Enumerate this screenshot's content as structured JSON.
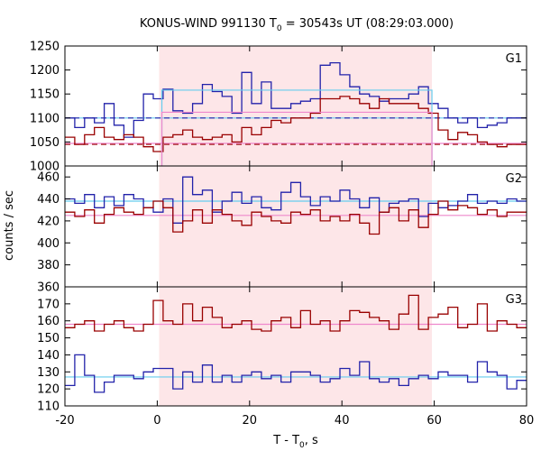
{
  "chart_data": {
    "type": "line",
    "title": "KONUS-WIND 991130 T",
    "title_sub": "0",
    "title_rest": " = 30543s UT (08:29:03.000)",
    "xlabel": "T - T",
    "xlabel_sub": "0",
    "xlabel_rest": ", s",
    "ylabel": "counts / sec",
    "xlim": [
      -20,
      80
    ],
    "xticks": [
      -20,
      0,
      20,
      40,
      60,
      80
    ],
    "shaded_interval": [
      0.4,
      59.5
    ],
    "grid": false,
    "colors": {
      "blue": "#2222aa",
      "red": "#990000",
      "cyan": "#66ccee",
      "pink": "#ee88cc",
      "shade": "#fde6e8"
    },
    "panels": [
      {
        "label": "G1",
        "ylim": [
          1000,
          1250
        ],
        "yticks": [
          1000,
          1050,
          1100,
          1150,
          1200,
          1250
        ],
        "step_series": [
          {
            "color": "blue",
            "x0": -20,
            "values": [
              1100,
              1080,
              1100,
              1090,
              1130,
              1085,
              1060,
              1095,
              1150,
              1140,
              1160,
              1115,
              1110,
              1130,
              1170,
              1155,
              1145,
              1110,
              1195,
              1130,
              1175,
              1120,
              1120,
              1130,
              1135,
              1140,
              1210,
              1215,
              1190,
              1165,
              1150,
              1145,
              1135,
              1140,
              1140,
              1150,
              1165,
              1130,
              1120,
              1100,
              1090,
              1100,
              1080,
              1085,
              1090,
              1100,
              1100
            ]
          },
          {
            "color": "red",
            "x0": -20,
            "values": [
              1060,
              1045,
              1065,
              1080,
              1060,
              1055,
              1065,
              1060,
              1040,
              1030,
              1060,
              1065,
              1075,
              1060,
              1055,
              1060,
              1065,
              1050,
              1080,
              1065,
              1080,
              1095,
              1090,
              1100,
              1100,
              1110,
              1140,
              1140,
              1145,
              1140,
              1130,
              1120,
              1140,
              1130,
              1130,
              1130,
              1120,
              1110,
              1075,
              1055,
              1070,
              1065,
              1050,
              1045,
              1040,
              1045,
              1045
            ]
          }
        ],
        "bg_lines": [
          {
            "color": "cyan",
            "style": "solid",
            "x": [
              -20,
              80
            ],
            "y": 1100
          },
          {
            "color": "blue",
            "style": "dashed",
            "x": [
              -20,
              80
            ],
            "y": 1100
          },
          {
            "color": "pink",
            "style": "solid",
            "x": [
              -20,
              80
            ],
            "y": 1047
          },
          {
            "color": "red",
            "style": "dashed",
            "x": [
              -20,
              80
            ],
            "y": 1045
          }
        ],
        "interval_levels": [
          {
            "color": "cyan",
            "x": [
              1,
              59.5
            ],
            "y": 1158
          },
          {
            "color": "pink",
            "x": [
              1,
              59.5
            ],
            "y": 1112
          }
        ]
      },
      {
        "label": "G2",
        "ylim": [
          360,
          470
        ],
        "yticks": [
          360,
          380,
          400,
          420,
          440,
          460
        ],
        "step_series": [
          {
            "color": "blue",
            "x0": -20,
            "values": [
              440,
              436,
              444,
              432,
              442,
              434,
              444,
              440,
              432,
              428,
              440,
              418,
              460,
              444,
              448,
              428,
              438,
              446,
              436,
              442,
              432,
              430,
              446,
              455,
              442,
              434,
              442,
              438,
              448,
              440,
              432,
              441,
              428,
              436,
              438,
              440,
              424,
              436,
              432,
              434,
              438,
              444,
              436,
              438,
              436,
              440,
              438
            ]
          },
          {
            "color": "red",
            "x0": -20,
            "values": [
              428,
              424,
              430,
              418,
              426,
              432,
              428,
              426,
              432,
              438,
              432,
              410,
              420,
              430,
              418,
              430,
              426,
              420,
              416,
              428,
              424,
              420,
              418,
              428,
              426,
              430,
              420,
              424,
              420,
              426,
              418,
              408,
              428,
              432,
              420,
              430,
              414,
              426,
              438,
              430,
              434,
              432,
              426,
              430,
              424,
              428,
              428
            ]
          }
        ],
        "bg_lines": [
          {
            "color": "cyan",
            "style": "solid",
            "x": [
              -20,
              80
            ],
            "y": 438
          },
          {
            "color": "pink",
            "style": "solid",
            "x": [
              -20,
              80
            ],
            "y": 425
          }
        ],
        "interval_levels": []
      },
      {
        "label": "G3",
        "ylim": [
          110,
          180
        ],
        "yticks": [
          110,
          120,
          130,
          140,
          150,
          160,
          170
        ],
        "step_series": [
          {
            "color": "red",
            "x0": -20,
            "values": [
              156,
              158,
              160,
              154,
              158,
              160,
              156,
              154,
              158,
              172,
              160,
              158,
              170,
              160,
              168,
              162,
              156,
              158,
              160,
              155,
              154,
              160,
              162,
              156,
              166,
              158,
              160,
              154,
              160,
              166,
              165,
              162,
              160,
              155,
              164,
              175,
              155,
              162,
              164,
              168,
              156,
              158,
              170,
              154,
              160,
              158,
              156
            ]
          },
          {
            "color": "blue",
            "x0": -20,
            "values": [
              122,
              140,
              128,
              118,
              124,
              128,
              128,
              126,
              130,
              132,
              132,
              120,
              130,
              124,
              134,
              124,
              128,
              124,
              128,
              130,
              126,
              128,
              124,
              130,
              130,
              128,
              124,
              126,
              132,
              128,
              136,
              126,
              124,
              126,
              122,
              126,
              128,
              126,
              130,
              128,
              128,
              124,
              136,
              130,
              128,
              120,
              125
            ]
          }
        ],
        "bg_lines": [
          {
            "color": "pink",
            "style": "solid",
            "x": [
              -20,
              80
            ],
            "y": 158
          },
          {
            "color": "cyan",
            "style": "solid",
            "x": [
              -20,
              80
            ],
            "y": 127
          }
        ],
        "interval_levels": []
      }
    ]
  }
}
